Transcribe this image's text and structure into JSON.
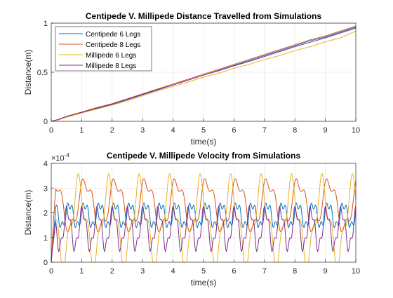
{
  "chart_data": [
    {
      "type": "line",
      "title": "Centipede V. Millipede Distance Travelled from Simulations",
      "xlabel": "time(s)",
      "ylabel": "Distance(m)",
      "xlim": [
        0,
        10
      ],
      "ylim": [
        0,
        1
      ],
      "xticks": [
        "0",
        "1",
        "2",
        "3",
        "4",
        "5",
        "6",
        "7",
        "8",
        "9",
        "10"
      ],
      "yticks": [
        "0",
        "0.5",
        "1"
      ],
      "grid": true,
      "legend_position": "top-left",
      "series": [
        {
          "name": "Centipede 6 Legs",
          "color": "#0072BD",
          "x": [
            0,
            0.25,
            0.5,
            1,
            1.5,
            2,
            2.5,
            3,
            3.5,
            4,
            4.5,
            5,
            5.5,
            6,
            6.5,
            7,
            7.5,
            8,
            8.5,
            9,
            9.5,
            10
          ],
          "y": [
            0,
            0.02,
            0.05,
            0.09,
            0.13,
            0.17,
            0.22,
            0.27,
            0.32,
            0.37,
            0.42,
            0.47,
            0.52,
            0.57,
            0.62,
            0.67,
            0.72,
            0.77,
            0.82,
            0.86,
            0.91,
            0.96
          ]
        },
        {
          "name": "Centipede 8 Legs",
          "color": "#D95319",
          "x": [
            0,
            0.25,
            0.5,
            1,
            1.5,
            2,
            2.5,
            3,
            3.5,
            4,
            4.5,
            5,
            5.5,
            6,
            6.5,
            7,
            7.5,
            8,
            8.5,
            9,
            9.5,
            10
          ],
          "y": [
            0,
            0.02,
            0.05,
            0.095,
            0.14,
            0.18,
            0.23,
            0.28,
            0.33,
            0.38,
            0.43,
            0.48,
            0.53,
            0.58,
            0.63,
            0.68,
            0.73,
            0.78,
            0.83,
            0.87,
            0.92,
            0.97
          ]
        },
        {
          "name": "Millipede 6 Legs",
          "color": "#EDB120",
          "x": [
            0,
            0.25,
            0.5,
            1,
            1.5,
            2,
            2.5,
            3,
            3.5,
            4,
            4.5,
            5,
            5.5,
            6,
            6.5,
            7,
            7.5,
            8,
            8.5,
            9,
            9.5,
            10
          ],
          "y": [
            0,
            0.015,
            0.04,
            0.085,
            0.125,
            0.165,
            0.21,
            0.26,
            0.31,
            0.355,
            0.4,
            0.45,
            0.49,
            0.54,
            0.58,
            0.63,
            0.67,
            0.72,
            0.76,
            0.81,
            0.85,
            0.92
          ]
        },
        {
          "name": "Millipede 8 Legs",
          "color": "#7E2F8E",
          "x": [
            0,
            0.25,
            0.5,
            1,
            1.5,
            2,
            2.5,
            3,
            3.5,
            4,
            4.5,
            5,
            5.5,
            6,
            6.5,
            7,
            7.5,
            8,
            8.5,
            9,
            9.5,
            10
          ],
          "y": [
            0,
            0.02,
            0.05,
            0.09,
            0.135,
            0.175,
            0.225,
            0.275,
            0.325,
            0.37,
            0.42,
            0.47,
            0.515,
            0.565,
            0.61,
            0.66,
            0.71,
            0.76,
            0.805,
            0.85,
            0.9,
            0.95
          ]
        }
      ]
    },
    {
      "type": "line",
      "title": "Centipede V. Millipede Velocity from Simulations",
      "xlabel": "time(s)",
      "ylabel": "Distance(m)",
      "y_exponent_label": "×10",
      "y_exponent_value": "-4",
      "xlim": [
        0,
        10
      ],
      "ylim": [
        0,
        4
      ],
      "xticks": [
        "0",
        "1",
        "2",
        "3",
        "4",
        "5",
        "6",
        "7",
        "8",
        "9",
        "10"
      ],
      "yticks": [
        "0",
        "1",
        "2",
        "3",
        "4"
      ],
      "grid": true,
      "series": [
        {
          "name": "Centipede 6 Legs",
          "color": "#0072BD",
          "mean": 1.9,
          "amp": 0.45,
          "period": 0.5,
          "phase": 0.3,
          "secondary": 0.2
        },
        {
          "name": "Centipede 8 Legs",
          "color": "#D95319",
          "mean": 2.3,
          "amp": 0.95,
          "period": 1.0,
          "phase": 0.8,
          "secondary": 0.3
        },
        {
          "name": "Millipede 6 Legs",
          "color": "#EDB120",
          "mean": 1.6,
          "amp": 1.5,
          "period": 1.0,
          "phase": 2.2,
          "secondary": 0.5
        },
        {
          "name": "Millipede 8 Legs",
          "color": "#7E2F8E",
          "mean": 1.35,
          "amp": 0.75,
          "period": 0.5,
          "phase": 1.2,
          "secondary": 0.25
        }
      ]
    }
  ]
}
